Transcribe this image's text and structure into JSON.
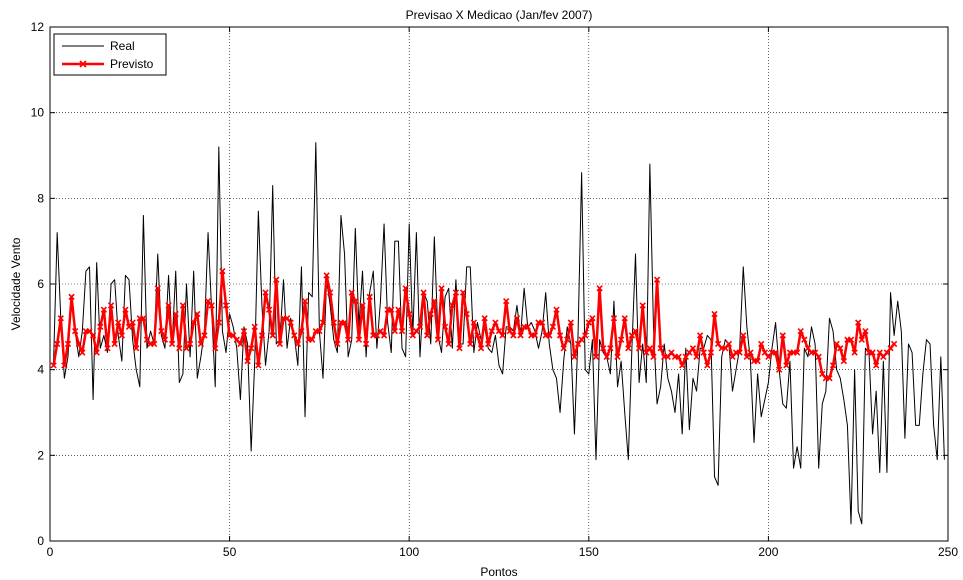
{
  "chart_data": {
    "type": "line",
    "title": "Previsao X Medicao (Jan/fev 2007)",
    "xlabel": "Pontos",
    "ylabel": "Velocidade Vento",
    "xlim": [
      0,
      250
    ],
    "ylim": [
      0,
      12
    ],
    "xticks": [
      0,
      50,
      100,
      150,
      200,
      250
    ],
    "yticks": [
      0,
      2,
      4,
      6,
      8,
      10,
      12
    ],
    "grid": true,
    "legend_position": "top-left",
    "series": [
      {
        "name": "Real",
        "color": "#000000",
        "marker": "none",
        "x_start": 1,
        "values": [
          4.2,
          7.2,
          5.2,
          3.8,
          4.3,
          5.7,
          4.9,
          4.3,
          4.9,
          6.3,
          6.4,
          3.3,
          6.5,
          4.5,
          4.8,
          4.4,
          6.0,
          6.1,
          4.8,
          4.2,
          6.2,
          6.1,
          4.7,
          4.0,
          3.6,
          7.6,
          4.5,
          4.9,
          4.6,
          6.7,
          4.8,
          4.5,
          6.2,
          4.6,
          6.3,
          3.7,
          3.9,
          6.0,
          4.3,
          6.3,
          3.8,
          4.3,
          4.9,
          7.2,
          5.4,
          3.6,
          9.2,
          4.9,
          4.4,
          5.3,
          5.0,
          4.5,
          3.3,
          5.0,
          4.6,
          2.1,
          4.2,
          7.7,
          5.5,
          4.1,
          4.9,
          8.3,
          4.6,
          4.7,
          6.1,
          4.5,
          5.2,
          4.8,
          4.1,
          6.4,
          2.9,
          5.8,
          5.7,
          9.3,
          4.9,
          3.8,
          6.1,
          5.5,
          4.7,
          4.4,
          7.6,
          6.7,
          4.3,
          4.7,
          7.3,
          5.0,
          6.3,
          4.3,
          5.8,
          6.3,
          4.5,
          5.6,
          7.4,
          5.1,
          4.4,
          7.0,
          7.0,
          4.5,
          4.3,
          7.4,
          4.8,
          7.2,
          4.3,
          5.8,
          5.6,
          4.6,
          7.1,
          4.8,
          4.4,
          5.7,
          5.9,
          4.5,
          6.1,
          4.6,
          4.6,
          6.4,
          6.4,
          4.4,
          5.1,
          4.7,
          5.0,
          4.5,
          4.4,
          4.8,
          4.1,
          3.9,
          5.0,
          5.0,
          4.9,
          5.5,
          4.8,
          5.9,
          5.0,
          5.1,
          4.9,
          4.5,
          4.9,
          5.8,
          4.6,
          4.0,
          3.8,
          3.0,
          4.2,
          5.0,
          4.6,
          2.5,
          4.8,
          8.6,
          4.0,
          3.9,
          4.7,
          1.9,
          4.7,
          4.4,
          4.3,
          3.9,
          5.6,
          3.6,
          4.2,
          3.0,
          1.9,
          4.5,
          6.7,
          3.7,
          4.6,
          3.7,
          8.8,
          5.0,
          3.2,
          3.6,
          4.6,
          3.8,
          3.5,
          3.0,
          3.9,
          2.5,
          4.5,
          2.6,
          3.8,
          3.5,
          4.5,
          4.5,
          4.8,
          4.7,
          1.5,
          1.3,
          4.3,
          4.7,
          4.6,
          3.5,
          4.0,
          4.5,
          6.4,
          5.0,
          4.2,
          2.3,
          3.9,
          2.9,
          3.3,
          3.7,
          4.5,
          5.1,
          4.0,
          3.2,
          3.1,
          4.2,
          1.7,
          2.2,
          1.7,
          4.5,
          4.3,
          5.0,
          4.6,
          1.7,
          3.2,
          3.5,
          5.2,
          4.9,
          4.0,
          3.8,
          3.3,
          2.7,
          0.4,
          4.0,
          0.7,
          0.4,
          4.5,
          4.4,
          2.5,
          3.5,
          1.6,
          4.2,
          1.6,
          5.8,
          4.8,
          5.6,
          4.9,
          2.4,
          4.6,
          4.4,
          2.7,
          2.7,
          3.9,
          4.7,
          4.6,
          2.7,
          1.9,
          4.3,
          1.9
        ]
      },
      {
        "name": "Previsto",
        "color": "#ff0000",
        "marker": "x",
        "x_start": 1,
        "values": [
          4.1,
          4.6,
          5.2,
          4.1,
          4.6,
          5.7,
          4.9,
          4.6,
          4.4,
          4.9,
          4.9,
          4.8,
          4.4,
          5.0,
          5.4,
          4.5,
          5.5,
          4.6,
          5.1,
          4.8,
          5.4,
          5.0,
          5.1,
          4.5,
          5.2,
          5.2,
          4.7,
          4.6,
          4.6,
          5.9,
          4.9,
          4.7,
          5.5,
          4.6,
          5.3,
          4.5,
          5.5,
          4.5,
          4.6,
          5.1,
          5.3,
          4.6,
          4.8,
          5.6,
          5.5,
          4.5,
          5.1,
          6.3,
          5.5,
          4.8,
          4.8,
          4.7,
          4.6,
          4.9,
          4.2,
          4.5,
          5.0,
          4.1,
          4.8,
          5.8,
          5.4,
          4.8,
          6.1,
          4.6,
          5.2,
          5.2,
          5.1,
          4.8,
          4.6,
          4.9,
          5.6,
          4.7,
          4.7,
          4.9,
          4.9,
          5.1,
          6.2,
          5.8,
          5.1,
          4.6,
          5.1,
          5.1,
          4.7,
          5.8,
          5.6,
          4.7,
          5.5,
          4.6,
          5.7,
          4.8,
          4.8,
          4.9,
          4.8,
          5.4,
          5.4,
          4.9,
          5.4,
          4.9,
          5.9,
          5.3,
          4.8,
          4.9,
          5.0,
          5.8,
          4.8,
          5.3,
          5.6,
          4.7,
          5.9,
          5.0,
          4.6,
          5.5,
          5.8,
          4.5,
          5.8,
          5.3,
          4.6,
          5.1,
          4.8,
          4.5,
          5.2,
          4.6,
          4.9,
          5.1,
          4.9,
          4.8,
          5.6,
          4.9,
          4.8,
          5.2,
          4.8,
          5.0,
          5.0,
          4.8,
          4.8,
          5.1,
          5.1,
          4.8,
          4.8,
          5.0,
          5.4,
          4.8,
          4.5,
          4.7,
          5.1,
          4.3,
          4.6,
          4.7,
          4.8,
          5.1,
          5.2,
          4.3,
          5.9,
          4.5,
          4.3,
          4.5,
          5.2,
          4.3,
          4.7,
          5.2,
          4.5,
          4.8,
          4.9,
          4.5,
          5.5,
          4.4,
          4.5,
          4.3,
          6.1,
          4.5,
          4.3,
          4.3,
          4.4,
          4.3,
          4.3,
          4.1,
          4.3,
          4.4,
          4.5,
          4.3,
          4.8,
          4.4,
          4.1,
          4.4,
          5.3,
          4.6,
          4.5,
          4.5,
          4.6,
          4.3,
          4.4,
          4.4,
          4.8,
          4.3,
          4.4,
          4.2,
          4.2,
          4.6,
          4.4,
          4.3,
          4.4,
          4.4,
          4.0,
          4.8,
          4.1,
          4.4,
          4.4,
          4.4,
          4.9,
          4.7,
          4.5,
          4.4,
          4.4,
          4.3,
          3.9,
          3.8,
          3.8,
          4.1,
          4.6,
          4.5,
          4.2,
          4.7,
          4.7,
          4.4,
          5.1,
          4.7,
          4.9,
          4.4,
          4.4,
          4.1,
          4.4,
          4.3,
          4.4,
          4.5,
          4.6
        ]
      }
    ]
  }
}
